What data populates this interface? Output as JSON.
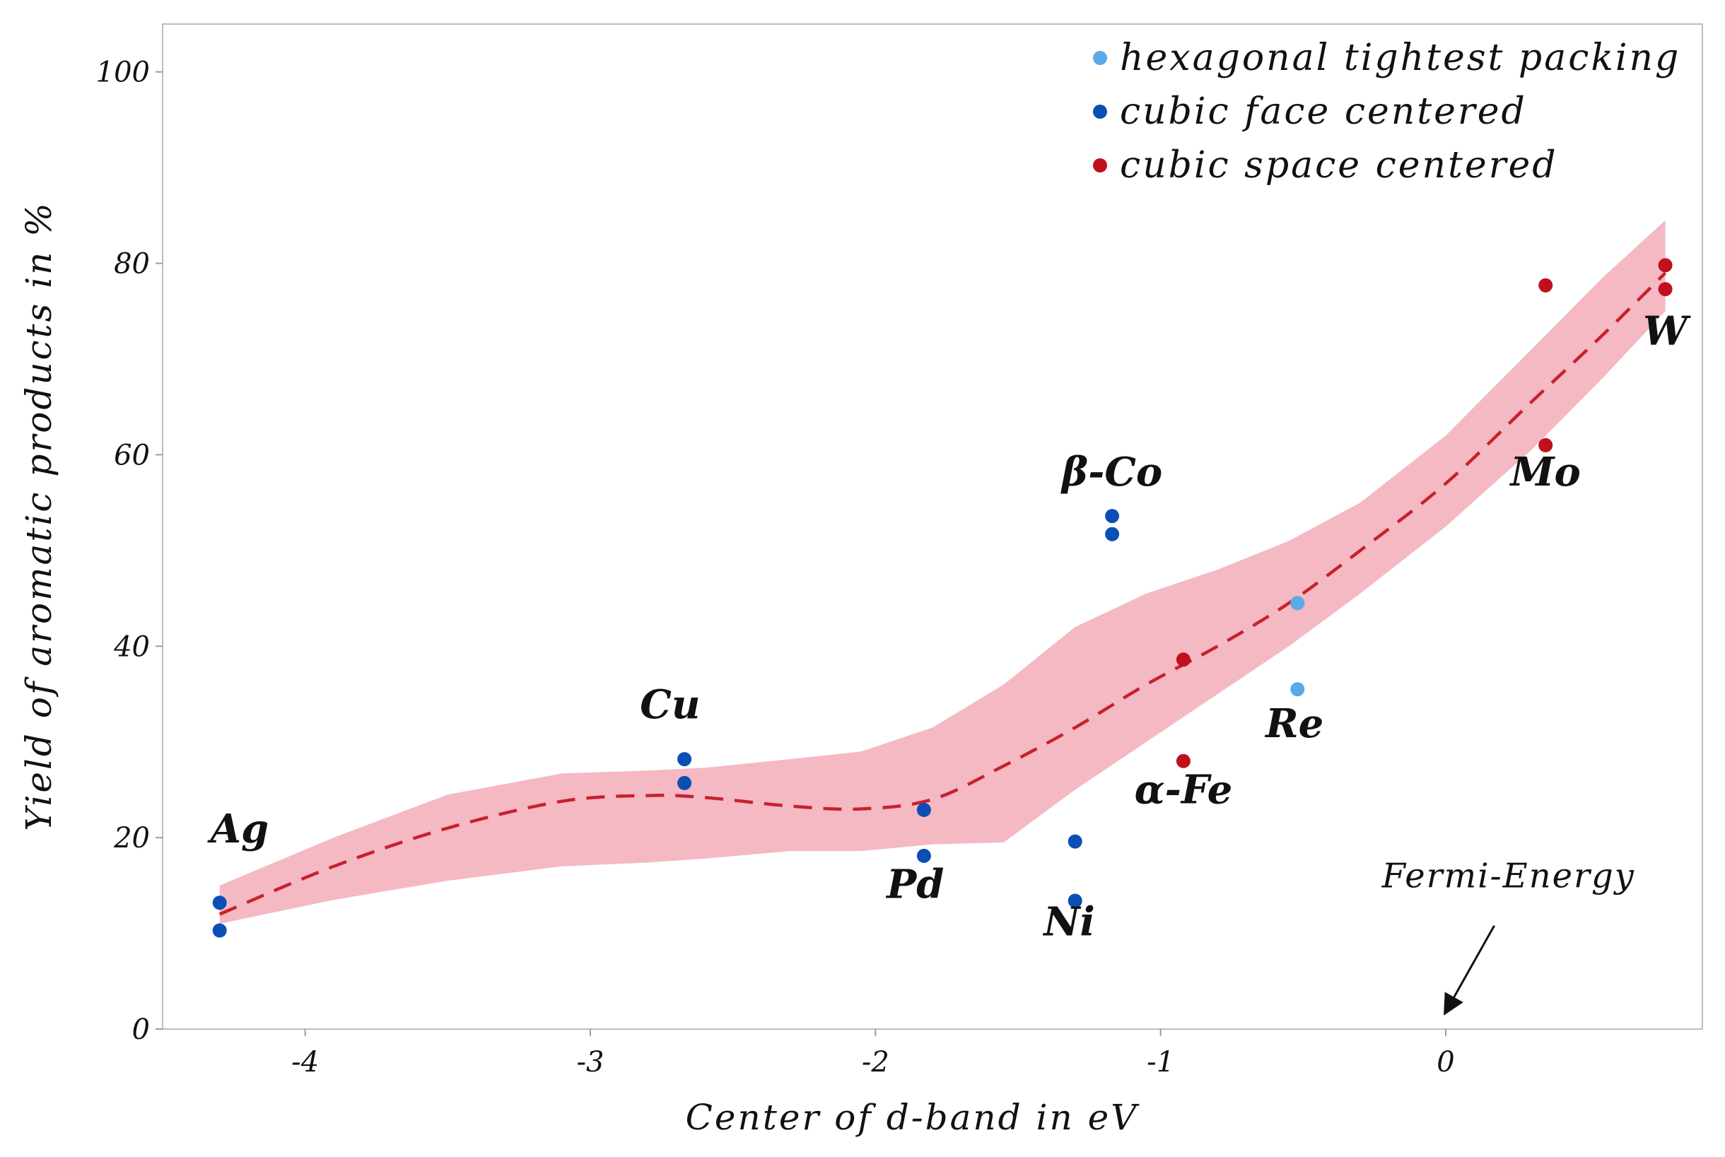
{
  "chart_data": {
    "type": "scatter",
    "title": "",
    "xlabel": "Center of d-band in eV",
    "ylabel": "Yield of aromatic products in %",
    "xlim": [
      -4.5,
      0.9
    ],
    "ylim": [
      0,
      105
    ],
    "x_ticks": [
      -4,
      -3,
      -2,
      -1,
      0
    ],
    "x_tick_labels": [
      "-4",
      "-3",
      "-2",
      "-1",
      "0"
    ],
    "y_ticks": [
      0,
      20,
      40,
      60,
      80,
      100
    ],
    "y_tick_labels": [
      "0",
      "20",
      "40",
      "60",
      "80",
      "100"
    ],
    "grid": false,
    "legend_position": "top-right",
    "series": [
      {
        "name": "hexagonal tightest packing",
        "color": "#5aa9e8",
        "points": [
          {
            "x": -0.52,
            "y": 44.5
          },
          {
            "x": -0.52,
            "y": 35.5
          }
        ]
      },
      {
        "name": "cubic face centered",
        "color": "#0b4fb5",
        "points": [
          {
            "x": -4.3,
            "y": 13.2
          },
          {
            "x": -4.3,
            "y": 10.3
          },
          {
            "x": -2.67,
            "y": 28.2
          },
          {
            "x": -2.67,
            "y": 25.7
          },
          {
            "x": -1.83,
            "y": 22.9
          },
          {
            "x": -1.83,
            "y": 18.1
          },
          {
            "x": -1.3,
            "y": 19.6
          },
          {
            "x": -1.3,
            "y": 13.4
          },
          {
            "x": -1.17,
            "y": 53.6
          },
          {
            "x": -1.17,
            "y": 51.7
          }
        ]
      },
      {
        "name": "cubic space centered",
        "color": "#c0101e",
        "points": [
          {
            "x": -0.92,
            "y": 38.6
          },
          {
            "x": -0.92,
            "y": 28.0
          },
          {
            "x": 0.35,
            "y": 77.7
          },
          {
            "x": 0.35,
            "y": 61.0
          },
          {
            "x": 0.77,
            "y": 79.8
          },
          {
            "x": 0.77,
            "y": 77.3
          }
        ]
      }
    ],
    "trend": {
      "style": "dashed",
      "color": "#c9202e",
      "band_color": "#f4b9c3",
      "x": [
        -4.3,
        -3.9,
        -3.5,
        -3.1,
        -2.8,
        -2.6,
        -2.3,
        -2.05,
        -1.8,
        -1.55,
        -1.3,
        -1.05,
        -0.8,
        -0.55,
        -0.3,
        0.0,
        0.3,
        0.55,
        0.77
      ],
      "y": [
        12.0,
        17.0,
        21.0,
        23.8,
        24.4,
        24.2,
        23.3,
        23.0,
        24.0,
        27.5,
        31.5,
        36.0,
        40.0,
        44.5,
        50.0,
        57.0,
        65.5,
        72.5,
        79.0
      ],
      "lower": [
        11.0,
        13.5,
        15.5,
        17.0,
        17.4,
        17.8,
        18.6,
        18.6,
        19.3,
        19.5,
        25.0,
        30.0,
        35.0,
        40.0,
        45.5,
        52.5,
        60.5,
        68.0,
        75.0
      ],
      "upper": [
        15.0,
        20.0,
        24.5,
        26.7,
        27.0,
        27.3,
        28.2,
        29.0,
        31.5,
        36.0,
        42.0,
        45.5,
        48.0,
        51.0,
        55.0,
        62.0,
        71.0,
        78.5,
        84.5
      ]
    },
    "point_labels": [
      {
        "text": "Ag",
        "x": -4.23,
        "y": 19.5
      },
      {
        "text": "Cu",
        "x": -2.72,
        "y": 32.5
      },
      {
        "text": "Pd",
        "x": -1.86,
        "y": 13.7
      },
      {
        "text": "Ni",
        "x": -1.32,
        "y": 9.8
      },
      {
        "text": "β-Co",
        "x": -1.17,
        "y": 56.8
      },
      {
        "text": "α-Fe",
        "x": -0.92,
        "y": 23.6
      },
      {
        "text": "Re",
        "x": -0.53,
        "y": 30.5
      },
      {
        "text": "Mo",
        "x": 0.35,
        "y": 56.8
      },
      {
        "text": "W",
        "x": 0.77,
        "y": 71.5
      }
    ],
    "annotations": [
      {
        "text": "Fermi-Energy",
        "x": 0.22,
        "y": 14.8,
        "arrow_from": [
          0.17,
          10.8
        ],
        "arrow_to": [
          0.0,
          1.8
        ]
      }
    ]
  }
}
